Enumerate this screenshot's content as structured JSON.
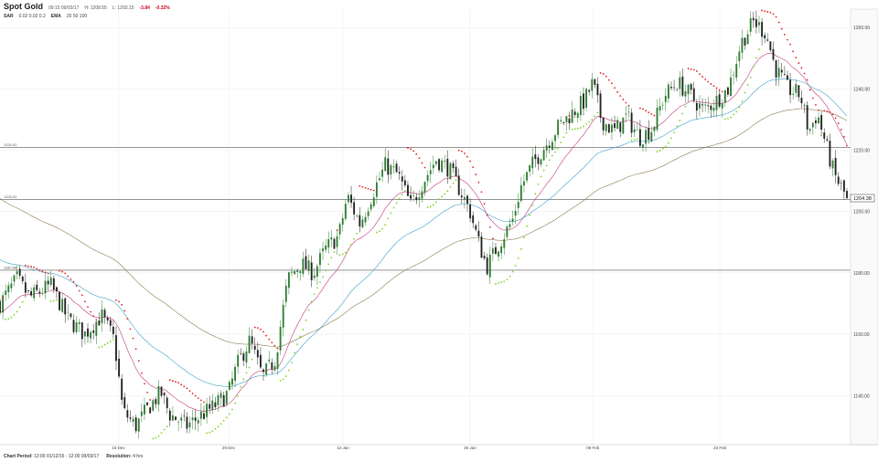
{
  "header": {
    "title": "Spot Gold",
    "time": "09:15 09/03/17",
    "high": "H: 1208.55",
    "low": "L: 1203.15",
    "change": "-3.84",
    "change_pct": "-0.32%",
    "sar_label": "SAR",
    "sar_params": "0.02  0.02  0.2",
    "ema_label": "EMA",
    "ema_params": "20  50  100"
  },
  "footer": {
    "period_label": "Chart Period:",
    "period_value": "12:00 01/12/16 - 12:00 09/03/17",
    "resolution_label": "Resolution:",
    "resolution_value": "4 hrs"
  },
  "chart_data": {
    "type": "candlestick",
    "instrument": "Spot Gold",
    "ylim": [
      1124,
      1266
    ],
    "y_ticks": [
      1140,
      1160,
      1180,
      1200,
      1220,
      1240,
      1260
    ],
    "y_tick_labels": [
      "1140.00",
      "1160.00",
      "1180.00",
      "1200.00",
      "1220.00",
      "1240.00",
      "1260.00"
    ],
    "x_ticks": [
      {
        "t": 0.14,
        "label": "15 Dec"
      },
      {
        "t": 0.27,
        "label": "29 Dec"
      },
      {
        "t": 0.405,
        "label": "12 Jan"
      },
      {
        "t": 0.555,
        "label": "26 Jan"
      },
      {
        "t": 0.7,
        "label": "09 Feb"
      },
      {
        "t": 0.85,
        "label": "23 Feb"
      }
    ],
    "horizontal_lines": [
      {
        "value": 1220.92,
        "label": "1220.92"
      },
      {
        "value": 1203.92,
        "label": "1203.92"
      },
      {
        "value": 1180.88,
        "label": "1180.88"
      }
    ],
    "last_price": 1204.38,
    "last_price_label": "1204.38",
    "price_path": [
      [
        0.0,
        1170
      ],
      [
        0.02,
        1178
      ],
      [
        0.035,
        1172
      ],
      [
        0.06,
        1176
      ],
      [
        0.08,
        1165
      ],
      [
        0.1,
        1160
      ],
      [
        0.12,
        1166
      ],
      [
        0.135,
        1158
      ],
      [
        0.145,
        1135
      ],
      [
        0.16,
        1130
      ],
      [
        0.175,
        1136
      ],
      [
        0.19,
        1141
      ],
      [
        0.2,
        1134
      ],
      [
        0.22,
        1130
      ],
      [
        0.24,
        1134
      ],
      [
        0.255,
        1137
      ],
      [
        0.27,
        1141
      ],
      [
        0.28,
        1150
      ],
      [
        0.295,
        1158
      ],
      [
        0.31,
        1146
      ],
      [
        0.325,
        1152
      ],
      [
        0.34,
        1178
      ],
      [
        0.355,
        1183
      ],
      [
        0.37,
        1180
      ],
      [
        0.385,
        1188
      ],
      [
        0.4,
        1192
      ],
      [
        0.41,
        1205
      ],
      [
        0.425,
        1196
      ],
      [
        0.44,
        1206
      ],
      [
        0.455,
        1215
      ],
      [
        0.47,
        1212
      ],
      [
        0.485,
        1202
      ],
      [
        0.5,
        1210
      ],
      [
        0.515,
        1217
      ],
      [
        0.53,
        1214
      ],
      [
        0.545,
        1206
      ],
      [
        0.555,
        1200
      ],
      [
        0.565,
        1190
      ],
      [
        0.575,
        1182
      ],
      [
        0.59,
        1190
      ],
      [
        0.605,
        1197
      ],
      [
        0.615,
        1208
      ],
      [
        0.63,
        1216
      ],
      [
        0.645,
        1222
      ],
      [
        0.66,
        1228
      ],
      [
        0.675,
        1232
      ],
      [
        0.69,
        1236
      ],
      [
        0.7,
        1242
      ],
      [
        0.71,
        1230
      ],
      [
        0.725,
        1226
      ],
      [
        0.74,
        1231
      ],
      [
        0.755,
        1224
      ],
      [
        0.77,
        1227
      ],
      [
        0.785,
        1238
      ],
      [
        0.8,
        1242
      ],
      [
        0.815,
        1238
      ],
      [
        0.83,
        1233
      ],
      [
        0.845,
        1236
      ],
      [
        0.86,
        1240
      ],
      [
        0.875,
        1255
      ],
      [
        0.89,
        1262
      ],
      [
        0.905,
        1258
      ],
      [
        0.915,
        1247
      ],
      [
        0.93,
        1240
      ],
      [
        0.945,
        1238
      ],
      [
        0.955,
        1226
      ],
      [
        0.965,
        1232
      ],
      [
        0.975,
        1222
      ],
      [
        0.985,
        1212
      ],
      [
        1.0,
        1204.4
      ]
    ]
  }
}
